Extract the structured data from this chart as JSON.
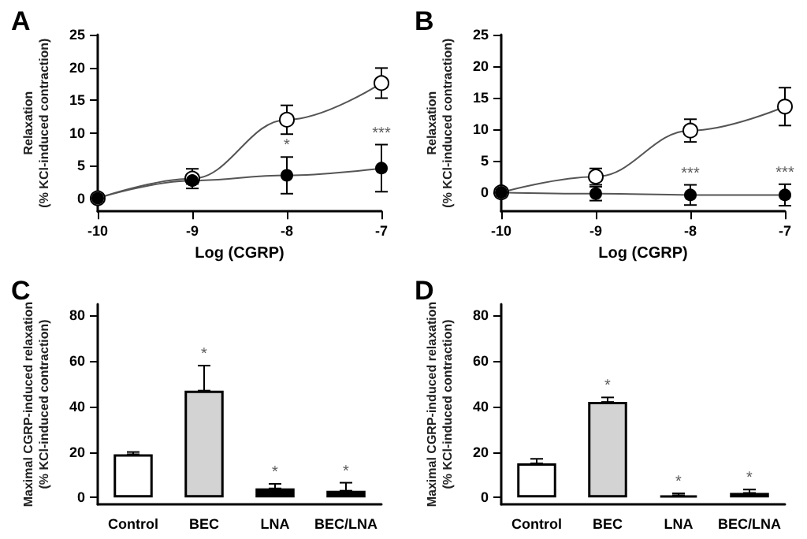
{
  "chart_data": [
    {
      "type": "line",
      "title": "A",
      "xlabel": "Log (CGRP)",
      "ylabel": "Relaxation\n(% KCl-induced contraction)",
      "x": [
        -10,
        -9,
        -8,
        -7
      ],
      "xlim": [
        -10,
        -7
      ],
      "xticks": [
        -10,
        -9,
        -8,
        -7
      ],
      "ylim": [
        -2,
        25
      ],
      "yticks": [
        0,
        5,
        10,
        15,
        20,
        25
      ],
      "marker": "circle",
      "grid": false,
      "legend": false,
      "series": [
        {
          "color": "#ffffff",
          "values": [
            0,
            3,
            12,
            17.6
          ],
          "errors": [
            null,
            1.5,
            2.2,
            2.3
          ]
        },
        {
          "color": "#000000",
          "values": [
            0,
            2.7,
            3.5,
            4.6
          ],
          "errors": [
            null,
            0.5,
            2.8,
            3.6
          ]
        }
      ],
      "annotations": [
        {
          "text": "*",
          "x": -8,
          "y": 6.3
        },
        {
          "text": "***",
          "x": -7,
          "y": 8.2
        }
      ]
    },
    {
      "type": "line",
      "title": "B",
      "xlabel": "Log (CGRP)",
      "ylabel": "Relaxation\n(% KCl-induced contraction)",
      "x": [
        -10,
        -9,
        -8,
        -7
      ],
      "xlim": [
        -10,
        -7
      ],
      "xticks": [
        -10,
        -9,
        -8,
        -7
      ],
      "ylim": [
        -3,
        25
      ],
      "yticks": [
        0,
        5,
        10,
        15,
        20,
        25
      ],
      "marker": "circle",
      "grid": false,
      "legend": false,
      "series": [
        {
          "color": "#ffffff",
          "values": [
            0,
            2.5,
            9.8,
            13.6
          ],
          "errors": [
            null,
            1.3,
            1.8,
            3
          ]
        },
        {
          "color": "#000000",
          "values": [
            0,
            -0.2,
            -0.4,
            -0.4
          ],
          "errors": [
            null,
            1.1,
            1.6,
            1.7
          ]
        }
      ],
      "annotations": [
        {
          "text": "***",
          "x": -8,
          "y": 1.2
        },
        {
          "text": "***",
          "x": -7,
          "y": 1.3
        }
      ]
    },
    {
      "type": "bar",
      "title": "C",
      "ylabel": "Maximal CGRP-induced relaxation\n(% KCl-induced contraction)",
      "categories": [
        "Control",
        "BEC",
        "LNA",
        "BEC/LNA"
      ],
      "values": [
        19,
        47,
        4,
        3
      ],
      "colors": [
        "#ffffff",
        "#d3d3d3",
        "#000000",
        "#000000"
      ],
      "errors": [
        [
          19,
          20
        ],
        [
          47,
          58
        ],
        [
          4,
          6
        ],
        [
          3,
          6.5
        ]
      ],
      "ylim": [
        -3,
        85
      ],
      "yticks": [
        0,
        20,
        40,
        60,
        80
      ],
      "grid": false,
      "legend": false,
      "annotations": [
        {
          "text": "*",
          "x": "BEC",
          "y": 58
        },
        {
          "text": "*",
          "x": "LNA",
          "y": 6
        },
        {
          "text": "*",
          "x": "BEC/LNA",
          "y": 6.5
        }
      ]
    },
    {
      "type": "bar",
      "title": "D",
      "ylabel": "Maximal CGRP-induced relaxation\n(% KCl-induced contraction)",
      "categories": [
        "Control",
        "BEC",
        "LNA",
        "BEC/LNA"
      ],
      "values": [
        15,
        42,
        1,
        2
      ],
      "colors": [
        "#ffffff",
        "#d3d3d3",
        "#000000",
        "#000000"
      ],
      "errors": [
        [
          15,
          17
        ],
        [
          42,
          44
        ],
        [
          1,
          1.8
        ],
        [
          2,
          3.5
        ]
      ],
      "ylim": [
        -3,
        85
      ],
      "yticks": [
        0,
        20,
        40,
        60,
        80
      ],
      "grid": false,
      "legend": false,
      "annotations": [
        {
          "text": "*",
          "x": "BEC",
          "y": 44
        },
        {
          "text": "*",
          "x": "LNA",
          "y": 1.8
        },
        {
          "text": "*",
          "x": "BEC/LNA",
          "y": 3.5
        }
      ]
    }
  ]
}
